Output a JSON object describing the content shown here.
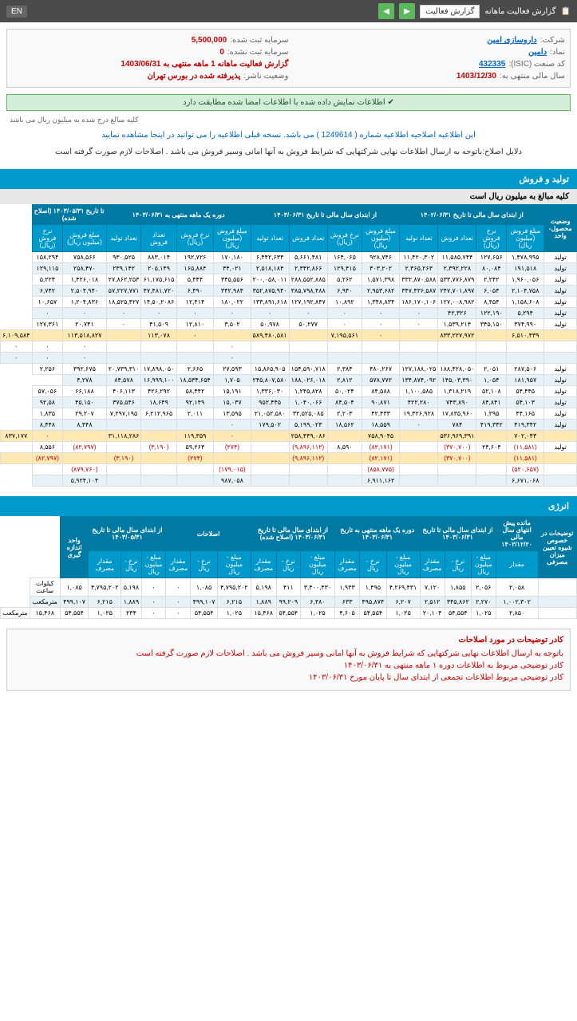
{
  "topbar": {
    "title": "گزارش فعالیت ماهانه",
    "dropdown": "گزارش فعالیت",
    "lang": "EN"
  },
  "info": {
    "company_label": "شرکت:",
    "company": "داروسازی امین",
    "capital_reg_label": "سرمایه ثبت شده:",
    "capital_reg": "5,500,000",
    "symbol_label": "نماد:",
    "symbol": "دامین",
    "capital_unreg_label": "سرمایه ثبت نشده:",
    "capital_unreg": "0",
    "isic_label": "کد صنعت (ISIC):",
    "isic": "432335",
    "report_label": "گزارش فعالیت ماهانه 1 ماهه منتهی به 1403/06/31",
    "year_end_label": "سال مالی منتهی به:",
    "year_end": "1403/12/30",
    "status_label": "وضعیت ناشر:",
    "status": "پذیرفته شده در بورس تهران"
  },
  "alert": "اطلاعات نمایش داده شده با اطلاعات امضا شده مطابقت دارد",
  "sub_note": "کلیه مبالغ درج شده به میلیون ریال می باشد",
  "notice": "این اطلاعیه اصلاحیه اطلاعیه شماره ( 1249614 ) می باشد. نسخه قبلی اطلاعیه را می توانید در اینجا مشاهده نمایید",
  "reason": "دلایل اصلاح:باتوجه به ارسال اطلاعات نهایی شرکتهایی که شرایط فروش به آنها امانی وسیر فروش می باشد . اصلاحات لازم صورت گرفته است",
  "section1": {
    "title": "تولید و فروش",
    "subtitle": "کلیه مبالغ به میلیون ریال است"
  },
  "table1": {
    "group_headers": [
      "وضعیت محصول-واحد",
      "از ابتدای سال مالی تا تاریخ ۱۴۰۲/۰۶/۳۱",
      "از ابتدای سال مالی تا تاریخ ۱۴۰۳/۰۶/۳۱",
      "دوره یک ماهه منتهی به ۱۴۰۳/۰۶/۳۱",
      "تا تاریخ ۱۴۰۳/۰۵/۳۱ (اصلاح شده)"
    ],
    "sub_headers": [
      "مبلغ فروش (میلیون ریال)",
      "نرخ فروش (ریال)",
      "تعداد فروش",
      "تعداد تولید",
      "مبلغ فروش (میلیون ریال)",
      "نرخ فروش (ریال)",
      "تعداد فروش",
      "تعداد تولید",
      "مبلغ فروش (میلیون ریال)",
      "نرخ فروش (ریال)",
      "تعداد فروش",
      "تعداد تولید",
      "مبلغ فروش (میلیون ریال)",
      "نرخ فروش (ریال)"
    ],
    "rows": [
      {
        "c": [
          "تولید",
          "۱,۴۷۸,۹۹۵",
          "۱۲۷,۶۵۶",
          "۱۱,۵۸۵,۷۴۴",
          "۱۱,۴۲۰,۳۰۲",
          "۹۲۸,۷۴۶",
          "۱۶۴,۰۶۵",
          "۵,۶۶۱,۴۸۱",
          "۶,۴۴۲,۶۳۴",
          "۱۷۰,۱۸۰",
          "۱۹۲,۷۲۶",
          "۸۸۳,۰۱۴",
          "۹۳۰,۵۲۵",
          "۷۵۸,۵۶۶",
          "۱۵۸,۲۹۴"
        ],
        "alt": false
      },
      {
        "c": [
          "تولید",
          "۱۹۱,۵۱۸",
          "۸۰,۰۸۴",
          "۲,۳۹۲,۲۲۸",
          "۲,۳۶۵,۲۶۳",
          "۳۰۳,۲۰۲",
          "۱۲۹,۴۱۵",
          "۲,۳۴۲,۸۶۶",
          "۲,۵۱۸,۱۸۴",
          "۴۴,۰۲۱",
          "۱۶۵,۸۸۴",
          "۲۰۵,۱۴۹",
          "۲۳۹,۱۴۲",
          "۲۵۸,۴۷۰",
          "۱۲۹,۱۱۵"
        ],
        "alt": true
      },
      {
        "c": [
          "تولید",
          "۱,۹۶۰,۰۵۶",
          "۲,۲۴۲",
          "۵۳۳,۷۷۶,۸۷۹",
          "۳۳۲,۸۷۰,۵۸۸",
          "۱,۵۷۱,۳۹۸",
          "۵,۲۶۲",
          "۲۸۸,۵۵۲,۸۸۵",
          "۲۰۰,۰۵۸,۰۱۱",
          "۳۴۵,۵۵۶",
          "۵,۴۴۴",
          "۶۱,۱۷۵,۶۱۵",
          "۲۷,۸۶۲,۲۵۳",
          "۱,۴۲۶,۰۱۸",
          "۵,۲۲۴"
        ],
        "alt": false
      },
      {
        "c": [
          "تولید",
          "۲,۱۰۴,۷۵۸",
          "۶,۰۵۴",
          "۲۴۷,۷۰۱,۸۹۷",
          "۳۴۷,۴۳۶,۵۸۷",
          "۲,۹۵۳,۶۸۲",
          "۶,۹۴۰",
          "۳۸۵,۷۹۸,۴۸۸",
          "۳۵۲,۸۷۵,۹۴۰",
          "۳۴۲,۹۸۴",
          "۶,۴۹۰",
          "۴۷,۴۸۱,۷۲۰",
          "۵۷,۲۲۷,۷۷۱",
          "۲,۵۰۴,۹۴۰",
          "۶,۷۴۲"
        ],
        "alt": true
      },
      {
        "c": [
          "تولید",
          "۱,۱۵۸,۶۰۸",
          "۸,۴۵۴",
          "۱۲۷,۰۰۸,۹۸۲",
          "۱۸۶,۱۷۰,۱۰۶",
          "۱,۳۴۸,۸۳۴",
          "۱۰,۸۹۲",
          "۱۲۷,۱۹۲,۸۴۷",
          "۱۳۳,۸۹۱,۶۱۸",
          "۱۸۰,۰۲۲",
          "۱۲,۴۱۴",
          "۱۴,۵۰,۲۰۸۶",
          "۱۸,۵۲۵,۴۲۷",
          "۱,۲۰۴,۸۳۶",
          "۱۰,۶۵۷"
        ],
        "alt": false
      },
      {
        "c": [
          "تولید",
          "۵,۲۹۴",
          "۱۲۲,۱۹۰",
          "۴۲,۳۲۶",
          "۰",
          "۰",
          "۰",
          "۰",
          "۰",
          "۰",
          "۰",
          "۰",
          "۰",
          "۰",
          "۰"
        ],
        "alt": true
      },
      {
        "c": [
          "تولید",
          "۳۷۴,۹۹۰",
          "۳۴۵,۱۵۰",
          "۱,۵۳۹,۲۱۴",
          "۰",
          "۰",
          "۰",
          "۵۰,۲۷۷",
          "۵۰,۹۷۸",
          "۳,۵۰۲",
          "۱۲,۸۱۰",
          "۴۱,۵۰۹",
          "۰",
          "۲۰,۷۴۱",
          "۱۲۷,۳۶۱"
        ],
        "alt": false
      },
      {
        "c": [
          "",
          "۶,۵۱۰,۴۳۹",
          "",
          "۸۳۳,۲۲۷,۹۷۲",
          "",
          "۰",
          "۷,۱۹۵,۵۶۱",
          "",
          "۵۸۹,۴۸۰,۵۸۱",
          "",
          "۰",
          "۱۱۳,۰۷۸",
          "",
          "۱۱۳,۵۱۸,۸۲۷",
          "",
          "۶,۱۰۹,۵۸۴"
        ],
        "highlight": true
      },
      {
        "c": [
          "",
          "",
          "",
          "",
          "",
          "",
          "",
          "",
          "",
          "۰",
          "",
          "",
          "",
          "۰",
          "۰",
          "۰"
        ],
        "alt": false
      },
      {
        "c": [
          "",
          "",
          "",
          "",
          "",
          "",
          "",
          "",
          "",
          "۰",
          "",
          "",
          "",
          "۰",
          "۰",
          "۰"
        ],
        "alt": true
      },
      {
        "c": [
          "تولید",
          "۲۸۷,۵۰۶",
          "۲,۰۵۱",
          "۱۸۸,۴۲۸,۰۵۰",
          "۱۲۷,۱۸۸,۰۲۵",
          "۴۸۰,۲۶۷",
          "۲,۳۸۴",
          "۱۵۴,۵۹۰,۷۱۸",
          "۱۵,۸۶۵,۹۰۵",
          "۲۷,۵۹۳",
          "۲,۶۶۵",
          "۱۷,۸۹۸,۰۵۰",
          "۲۰,۷۳۹,۳۱۰",
          "۳۹۲,۶۷۵",
          "۲,۲۵۶"
        ],
        "alt": false
      },
      {
        "c": [
          "تولید",
          "۱۸۱,۹۵۷",
          "۱,۰۵۴",
          "۱۴۵,۰۳,۳۹۰",
          "۱۳۴,۸۷۴,۰۹۲",
          "۵۷۸,۷۷۲",
          "۲,۸۱۲",
          "۱۸۸,۰۲۶,۰۱۸",
          "۲۴۵,۸۰۷,۵۸۰",
          "۱,۷۰۵",
          "۱۸,۵۳۴,۶۵۴",
          "۱۶,۹۹۹,۱۰۰",
          "۸۴,۵۷۸",
          "۴,۲۷۸"
        ],
        "alt": true
      },
      {
        "c": [
          "تولید",
          "۵۴,۴۴۵",
          "۵۲,۱۰۸",
          "۱,۳۱۸,۲۱۹",
          "۱,۱۰۰,۵۸۵",
          "۸۴,۵۸۸",
          "۵۰,۰۲۴",
          "۱,۲۴۵,۸۲۸",
          "۱,۳۳۶,۰۳۰",
          "۱۵,۱۹۱",
          "۵۸,۴۴۲",
          "۴۲۶,۲۹۲",
          "۴۰۶,۱۱۳",
          "۶۶,۱۸۸",
          "۵۷,۰۵۶"
        ],
        "alt": false
      },
      {
        "c": [
          "تولید",
          "۵۴,۱۰۳",
          "۸۴,۸۴۱",
          "۷۴۳,۸۹۰",
          "۴۲۲,۲۸۰",
          "۹۰,۸۷۱",
          "۸۴,۵۰۴",
          "۱,۰۴۰,۰۶۶",
          "۹۵۲,۴۴۵",
          "۱۵,۰۳۷",
          "۹۲,۱۴۹",
          "۱۸,۶۴۹",
          "۳۷۵,۵۴۶",
          "۴۵,۱۵۰",
          "۹۲,۵۸"
        ],
        "alt": true
      },
      {
        "c": [
          "تولید",
          "۴۴,۱۶۵",
          "۱,۲۹۵",
          "۱۷,۸۳۵,۹۶۰",
          "۱۹,۳۲۶,۹۲۸",
          "۴۲,۴۳۳",
          "۲,۲۰۳",
          "۳۲,۵۲۵,۰۸۵",
          "۲۱,۰۵۲,۵۸۰",
          "۱۳,۵۹۵",
          "۲,۰۱۱",
          "۶,۲۱۲,۹۶۵",
          "۷,۲۹۷,۱۹۵",
          "۲۹,۲۰۷",
          "۱,۸۳۵"
        ],
        "alt": false
      },
      {
        "c": [
          "تولید",
          "۴۱۹,۳۴۲",
          "۴۱۹,۳۴۲",
          "۷۸۴",
          "۰",
          "۱۸,۵۵۹",
          "۱۸,۵۶۲",
          "۵,۱۹۹,۰۲۳",
          "۱۷۹,۵۰۲",
          "۰",
          "",
          "",
          "",
          "۸,۴۴۸",
          "۸,۴۴۸"
        ],
        "alt": true
      },
      {
        "c": [
          "",
          "۷۰۲,۰۴۳",
          "",
          "۵۳۶,۹۶۹,۳۹۱",
          "",
          "۷۵۸,۹۰۴۵",
          "",
          "۲۵۸,۴۴۹,۰۸۶",
          "",
          "۰",
          "۱۱۹,۳۵۹",
          "",
          "۳۱,۱۱۸,۲۸۶",
          "",
          "۰",
          "۸۳۷,۱۷۷"
        ],
        "highlight": true
      },
      {
        "c": [
          "تولید",
          "(۱۱,۵۸۱)",
          "۲۴,۶۰۴",
          "(۳۷۰,۷۰۰)",
          "",
          "(۸۲,۱۷۱)",
          "۸,۵۹۰",
          "(۹,۸۹۶,۱۱۲)",
          "",
          "(۲۷۴)",
          "۵۹,۲۶۳",
          "(۳,۱۹۰)",
          "",
          "(۸۲,۷۹۷)",
          "۸,۵۵۶"
        ],
        "alt": false,
        "neg": true
      },
      {
        "c": [
          "",
          "(۱۱,۵۸۱)",
          "",
          "(۳۷۰,۷۰۰)",
          "",
          "(۸۲,۱۷۱)",
          "",
          "(۹,۸۹۶,۱۱۲)",
          "",
          "",
          "(۲۷۴)",
          "",
          "(۳,۱۹۰)",
          "",
          "(۸۲,۷۹۷)",
          ""
        ],
        "highlight": true,
        "neg": true
      },
      {
        "c": [
          "",
          "(۵۲۰,۶۵۷)",
          "",
          "",
          "",
          "(۸۵۸,۷۷۵)",
          "",
          "",
          "",
          "(۱۷۹,۰۱۵)",
          "",
          "",
          "",
          "(۸۷۹,۷۶۰)",
          ""
        ],
        "alt": false,
        "neg": true
      },
      {
        "c": [
          "",
          "۶,۶۷۱,۰۶۸",
          "",
          "",
          "",
          "۶,۹۱۱,۱۶۲",
          "",
          "",
          "",
          "۹۸۷,۰۵۸",
          "",
          "",
          "",
          "۵,۹۲۴,۱۰۴",
          ""
        ],
        "alt": true
      }
    ]
  },
  "section2": {
    "title": "انرژی"
  },
  "table2": {
    "group_headers": [
      "توضیحات در خصوص شیوه تعیین میزان مصرفی",
      "مانده پیش انتهای سال مالی ۱۴۰۲/۱۲/۲۰",
      "از ابتدای سال مالی تا تاریخ ۱۴۰۳/۰۶/۳۱",
      "دوره یک ماهه منتهی به تاریخ ۱۴۰۳/۰۶/۳۱",
      "از ابتدای سال مالی تا تاریخ ۱۴۰۳/۰۶/۳۱ (اصلاح شده)",
      "اصلاحات",
      "از ابتدای سال مالی تا تاریخ ۱۴۰۳/۰۵/۳۱",
      "واحد اندازه گیری"
    ],
    "sub_headers": [
      "مقدار",
      "مبلغ - میلیون ریال",
      "نرخ - ریال",
      "مقدار مصرف",
      "مبلغ - میلیون ریال",
      "نرخ - ریال",
      "مقدار مصرف",
      "مبلغ - میلیون ریال",
      "نرخ - ریال",
      "مقدار مصرف",
      "مبلغ - میلیون ریال",
      "نرخ - ریال",
      "مقدار مصرف",
      "مبلغ - میلیون ریال",
      "نرخ - ریال",
      "مقدار مصرف"
    ],
    "rows": [
      {
        "c": [
          "",
          "۲,۰۵۸",
          "۲,۰۵۶",
          "۱,۸۵۵",
          "۷,۱۲۰",
          "۴,۲۶۹,۴۳۱",
          "۱,۴۹۵",
          "۱,۹۳۳",
          "۳,۴۰۰,۴۳۰",
          "۴۱۱",
          "۵,۱۹۸",
          "۴,۷۹۵,۲۰۲",
          "۱,۰۸۵",
          "۰",
          "۰",
          "۵,۱۹۸",
          "۴,۷۹۵,۲۰۲",
          "۱,۰۸۵",
          "کیلوات ساعت"
        ],
        "alt": false
      },
      {
        "c": [
          "",
          "۱,۰۰۲,۳۰۲",
          "۲,۲۷۰",
          "۳۴۵,۸۶۲",
          "۲,۵۱۲",
          "۶,۲۰۷",
          "۴۹۵,۸۷۴",
          "۶۳۳",
          "۶,۴۸۰",
          "۹۹,۲۰۹",
          "۱,۸۸۹",
          "۶,۲۱۵",
          "۴۹۹,۱۰۷",
          "۰",
          "۰",
          "۱,۸۸۹",
          "۶,۲۱۵",
          "۴۹۹,۱۰۷",
          "مترمکعب"
        ],
        "alt": true
      },
      {
        "c": [
          "",
          "۲,۸۵۰",
          "۱,۰۲۵",
          "۵۴,۵۵۴",
          "۲۰,۱۰۴",
          "۱,۰۲۵",
          "۵۴,۵۵۴",
          "۴,۶۰۵",
          "۱,۰۲۵",
          "۵۴,۵۵۴",
          "۱۵,۴۶۸",
          "۱,۰۲۵",
          "۵۴,۵۵۴",
          "۰",
          "۰",
          "۲۳۴",
          "۱,۰۲۵",
          "۵۴,۵۵۴",
          "۱۵,۴۶۸",
          "مترمکعب"
        ],
        "alt": false
      }
    ]
  },
  "footer": {
    "title": "کادر توضیحات در مورد اصلاحات",
    "line1": "باتوجه به ارسال اطلاعات نهایی شرکتهایی که شرایط فروش به آنها امانی وسیر فروش می باشد . اصلاحات لازم صورت گرفته است",
    "line2": "کادر توضیحی مربوط به اطلاعات دوره ۱ ماهه منتهی به ۱۴۰۳/۰۶/۳۱",
    "line3": "کادر توضیحی مربوط اطلاعات تجمعی از ابتدای سال تا پایان مورخ ۱۴۰۳/۰۶/۳۱"
  }
}
